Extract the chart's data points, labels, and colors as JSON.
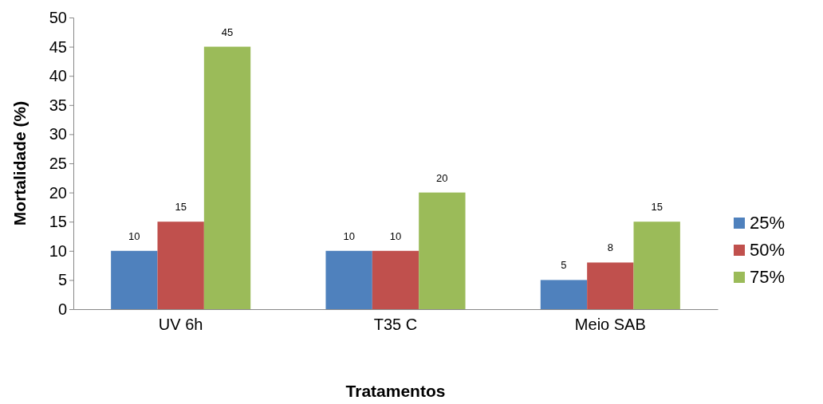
{
  "chart_data": {
    "type": "bar",
    "xlabel": "Tratamentos",
    "ylabel": "Mortalidade (%)",
    "categories": [
      "UV 6h",
      "T35 C",
      "Meio SAB"
    ],
    "series": [
      {
        "name": "25%",
        "color": "#4f81bd",
        "values": [
          10,
          10,
          5
        ]
      },
      {
        "name": "50%",
        "color": "#c0504d",
        "values": [
          15,
          10,
          8
        ]
      },
      {
        "name": "75%",
        "color": "#9bbb59",
        "values": [
          45,
          20,
          15
        ]
      }
    ],
    "ylim": [
      0,
      50
    ],
    "yticks": [
      0,
      5,
      10,
      15,
      20,
      25,
      30,
      35,
      40,
      45,
      50
    ],
    "grid": false,
    "legend": "right",
    "data_labels": true
  }
}
